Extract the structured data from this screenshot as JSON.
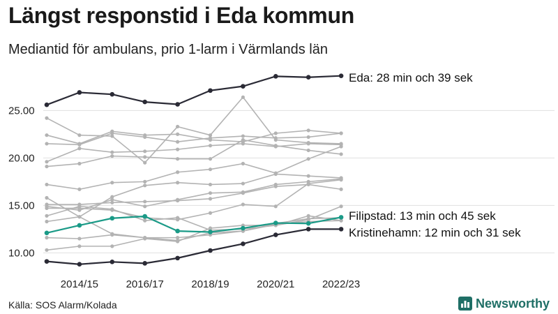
{
  "title": "Längst responstid i Eda kommun",
  "subtitle": "Mediantid för ambulans, prio 1-larm i Värmlands län",
  "source": "Källa: SOS Alarm/Kolada",
  "brand": "Newsworthy",
  "colors": {
    "highlight_dark": "#2a2a35",
    "highlight_teal": "#1a9a87",
    "grey": "#b3b3b3",
    "grid": "#e0e0e0"
  },
  "chart_data": {
    "type": "line",
    "title": "Längst responstid i Eda kommun",
    "subtitle": "Mediantid för ambulans, prio 1-larm i Värmlands län",
    "xlabel": "",
    "ylabel": "",
    "x": [
      "2013/14",
      "2014/15",
      "2015/16",
      "2016/17",
      "2017/18",
      "2018/19",
      "2019/20",
      "2020/21",
      "2021/22",
      "2022/23"
    ],
    "x_tick_labels": [
      "2014/15",
      "2016/17",
      "2018/19",
      "2020/21",
      "2022/23"
    ],
    "y_tick_labels": [
      "10.00",
      "15.00",
      "20.00",
      "25.00"
    ],
    "y_ticks": [
      10,
      15,
      20,
      25
    ],
    "ylim": [
      9,
      28.7
    ],
    "grid": "horizontal",
    "highlighted": [
      {
        "label": "Eda: 28 min och 39 sek",
        "color": "#2a2a35",
        "values": [
          25.6,
          26.9,
          26.7,
          25.9,
          25.65,
          27.1,
          27.55,
          28.6,
          28.5,
          28.65
        ]
      },
      {
        "label": "Filipstad: 13 min och 45 sek",
        "color": "#1a9a87",
        "values": [
          12.1,
          12.9,
          13.65,
          13.85,
          12.3,
          12.2,
          12.6,
          13.15,
          13.1,
          13.75
        ]
      },
      {
        "label": "Kristinehamn: 12 min och 31 sek",
        "color": "#2a2a35",
        "values": [
          9.1,
          8.8,
          9.05,
          8.9,
          9.45,
          10.25,
          10.95,
          11.9,
          12.5,
          12.5
        ]
      }
    ],
    "other_series": [
      [
        24.2,
        22.4,
        22.3,
        19.5,
        23.3,
        22.4,
        26.4,
        21.9,
        21.6,
        21.5
      ],
      [
        22.4,
        21.5,
        22.8,
        22.4,
        22.5,
        21.9,
        21.7,
        22.6,
        22.9,
        22.6
      ],
      [
        21.5,
        21.4,
        22.6,
        22.2,
        21.7,
        22.1,
        22.3,
        22.1,
        22.2,
        22.6
      ],
      [
        19.6,
        21.0,
        20.6,
        20.7,
        20.9,
        21.3,
        21.5,
        21.2,
        21.5,
        21.4
      ],
      [
        19.1,
        19.4,
        20.2,
        20.1,
        19.9,
        19.9,
        21.9,
        21.3,
        20.8,
        20.4
      ],
      [
        17.2,
        16.7,
        17.4,
        17.5,
        18.5,
        18.8,
        19.4,
        18.4,
        19.9,
        21.2
      ],
      [
        15.8,
        13.8,
        15.9,
        17.1,
        17.4,
        17.2,
        17.3,
        18.3,
        18.1,
        17.9
      ],
      [
        14.9,
        14.5,
        15.6,
        14.9,
        15.6,
        16.3,
        16.4,
        17.2,
        17.5,
        17.8
      ],
      [
        15.1,
        15.1,
        15.3,
        15.4,
        15.5,
        15.7,
        16.3,
        17.0,
        17.2,
        16.7
      ],
      [
        14.7,
        14.7,
        14.5,
        13.7,
        13.5,
        14.2,
        15.1,
        14.9,
        17.3,
        17.7
      ],
      [
        13.9,
        14.9,
        14.6,
        13.4,
        13.7,
        12.4,
        12.5,
        12.9,
        13.5,
        14.9
      ],
      [
        13.3,
        13.8,
        12.0,
        11.6,
        11.3,
        12.1,
        12.3,
        13.1,
        13.6,
        13.7
      ],
      [
        11.6,
        11.5,
        11.9,
        11.6,
        11.6,
        11.9,
        12.3,
        13.0,
        13.3,
        13.4
      ],
      [
        10.3,
        10.7,
        10.7,
        11.5,
        11.2,
        12.6,
        12.9,
        12.9,
        13.9,
        13.4
      ]
    ]
  }
}
